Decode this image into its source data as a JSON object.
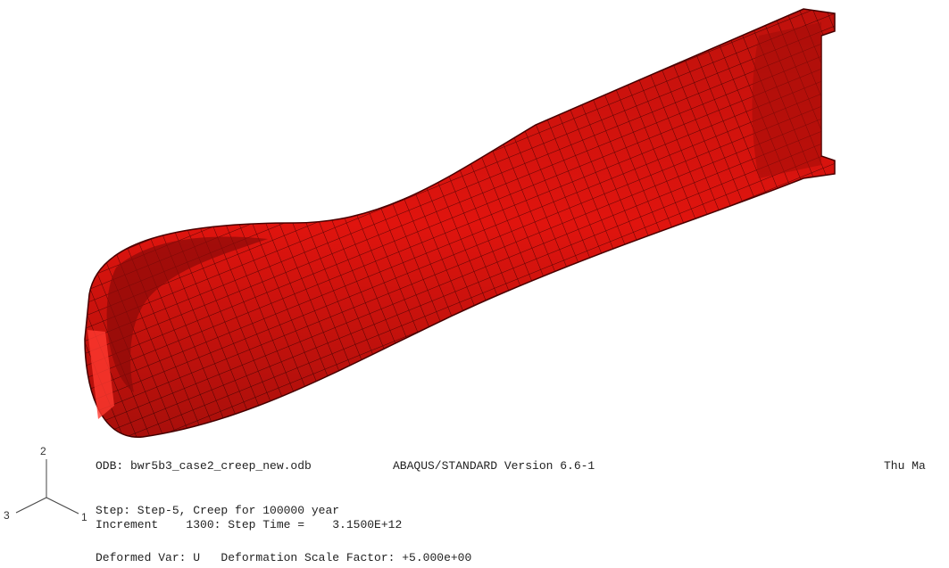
{
  "viewport": {
    "triad": {
      "axis_y": "2",
      "axis_z": "3",
      "axis_x": "1"
    },
    "info": {
      "odb": "ODB: bwr5b3_case2_creep_new.odb",
      "version": "ABAQUS/STANDARD Version 6.6-1",
      "date": "Thu Ma",
      "step": "Step: Step-5, Creep for 100000 year",
      "increment": "Increment    1300: Step Time =    3.1500E+12",
      "deformed": "Deformed Var: U   Deformation Scale Factor: +5.000e+00"
    }
  }
}
